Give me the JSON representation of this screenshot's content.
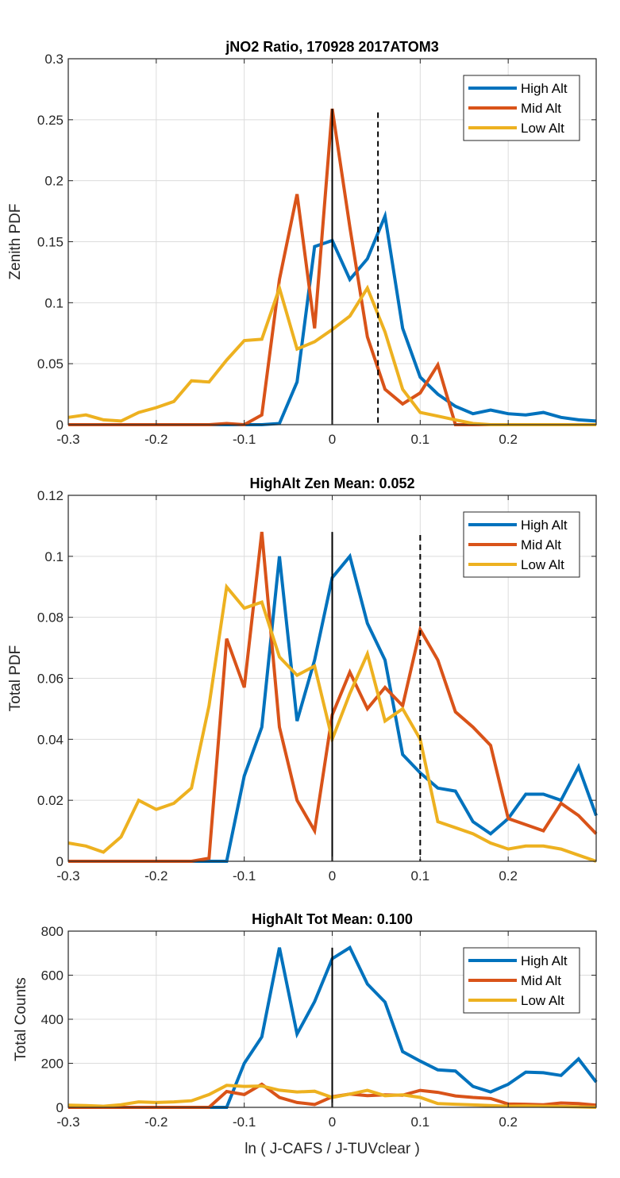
{
  "chart_data": [
    {
      "type": "line",
      "title": "jNO2 Ratio, 170928 2017ATOM3",
      "xlabel": "",
      "ylabel": "Zenith PDF",
      "xlim": [
        -0.3,
        0.3
      ],
      "ylim": [
        0,
        0.3
      ],
      "xticks": [
        -0.3,
        -0.2,
        -0.1,
        0,
        0.1,
        0.2
      ],
      "xtick_labels": [
        "-0.3",
        "-0.2",
        "-0.1",
        "0",
        "0.1",
        "0.2"
      ],
      "yticks": [
        0,
        0.05,
        0.1,
        0.15,
        0.2,
        0.25,
        0.3
      ],
      "ytick_labels": [
        "0",
        "0.05",
        "0.1",
        "0.15",
        "0.2",
        "0.25",
        "0.3"
      ],
      "grid": true,
      "legend": "top-right",
      "x": [
        -0.3,
        -0.28,
        -0.26,
        -0.24,
        -0.22,
        -0.2,
        -0.18,
        -0.16,
        -0.14,
        -0.12,
        -0.1,
        -0.08,
        -0.06,
        -0.04,
        -0.02,
        0,
        0.02,
        0.04,
        0.06,
        0.08,
        0.1,
        0.12,
        0.14,
        0.16,
        0.18,
        0.2,
        0.22,
        0.24,
        0.26,
        0.28,
        0.3
      ],
      "series": [
        {
          "name": "High Alt",
          "color": "#0072BD",
          "values": [
            0,
            0,
            0,
            0,
            0,
            0,
            0,
            0,
            0,
            0,
            0,
            0,
            0.001,
            0.035,
            0.146,
            0.151,
            0.119,
            0.136,
            0.171,
            0.079,
            0.039,
            0.025,
            0.015,
            0.009,
            0.012,
            0.009,
            0.008,
            0.01,
            0.006,
            0.004,
            0.003
          ]
        },
        {
          "name": "Mid Alt",
          "color": "#D95319",
          "values": [
            0,
            0,
            0,
            0,
            0,
            0,
            0,
            0,
            0,
            0.001,
            0,
            0.008,
            0.119,
            0.189,
            0.079,
            0.259,
            0.162,
            0.072,
            0.029,
            0.017,
            0.026,
            0.049,
            0,
            0,
            0,
            0,
            0,
            0,
            0,
            0,
            0
          ]
        },
        {
          "name": "Low Alt",
          "color": "#EDB120",
          "values": [
            0.006,
            0.008,
            0.004,
            0.003,
            0.01,
            0.014,
            0.019,
            0.036,
            0.035,
            0.053,
            0.069,
            0.07,
            0.112,
            0.062,
            0.068,
            0.078,
            0.089,
            0.112,
            0.076,
            0.029,
            0.01,
            0.007,
            0.004,
            0.001,
            0,
            0,
            0,
            0,
            0,
            0,
            0
          ]
        }
      ],
      "vlines": [
        {
          "x": 0,
          "style": "solid",
          "ymax": 0.259
        },
        {
          "x": 0.052,
          "style": "dashed",
          "ymax": 0.256
        }
      ]
    },
    {
      "type": "line",
      "title": "HighAlt Zen Mean: 0.052",
      "xlabel": "",
      "ylabel": "Total PDF",
      "xlim": [
        -0.3,
        0.3
      ],
      "ylim": [
        0,
        0.12
      ],
      "xticks": [
        -0.3,
        -0.2,
        -0.1,
        0,
        0.1,
        0.2
      ],
      "xtick_labels": [
        "-0.3",
        "-0.2",
        "-0.1",
        "0",
        "0.1",
        "0.2"
      ],
      "yticks": [
        0,
        0.02,
        0.04,
        0.06,
        0.08,
        0.1,
        0.12
      ],
      "ytick_labels": [
        "0",
        "0.02",
        "0.04",
        "0.06",
        "0.08",
        "0.1",
        "0.12"
      ],
      "grid": true,
      "legend": "top-right",
      "x": [
        -0.3,
        -0.28,
        -0.26,
        -0.24,
        -0.22,
        -0.2,
        -0.18,
        -0.16,
        -0.14,
        -0.12,
        -0.1,
        -0.08,
        -0.06,
        -0.04,
        -0.02,
        0,
        0.02,
        0.04,
        0.06,
        0.08,
        0.1,
        0.12,
        0.14,
        0.16,
        0.18,
        0.2,
        0.22,
        0.24,
        0.26,
        0.28,
        0.3
      ],
      "series": [
        {
          "name": "High Alt",
          "color": "#0072BD",
          "values": [
            0,
            0,
            0,
            0,
            0,
            0,
            0,
            0,
            0,
            0,
            0.028,
            0.044,
            0.1,
            0.046,
            0.066,
            0.093,
            0.1,
            0.078,
            0.066,
            0.035,
            0.029,
            0.024,
            0.023,
            0.013,
            0.009,
            0.014,
            0.022,
            0.022,
            0.02,
            0.031,
            0.015
          ]
        },
        {
          "name": "Mid Alt",
          "color": "#D95319",
          "values": [
            0,
            0,
            0,
            0,
            0,
            0,
            0,
            0,
            0.001,
            0.073,
            0.057,
            0.108,
            0.044,
            0.02,
            0.01,
            0.048,
            0.062,
            0.05,
            0.057,
            0.051,
            0.076,
            0.066,
            0.049,
            0.044,
            0.038,
            0.014,
            0.012,
            0.01,
            0.019,
            0.015,
            0.009
          ]
        },
        {
          "name": "Low Alt",
          "color": "#EDB120",
          "values": [
            0.006,
            0.005,
            0.003,
            0.008,
            0.02,
            0.017,
            0.019,
            0.024,
            0.051,
            0.09,
            0.083,
            0.085,
            0.067,
            0.061,
            0.064,
            0.04,
            0.055,
            0.068,
            0.046,
            0.05,
            0.04,
            0.013,
            0.011,
            0.009,
            0.006,
            0.004,
            0.005,
            0.005,
            0.004,
            0.002,
            0.0
          ]
        }
      ],
      "vlines": [
        {
          "x": 0,
          "style": "solid",
          "ymax": 0.108
        },
        {
          "x": 0.1,
          "style": "dashed",
          "ymax": 0.107
        }
      ]
    },
    {
      "type": "line",
      "title": "HighAlt Tot Mean: 0.100",
      "xlabel": "ln ( J-CAFS / J-TUVclear )",
      "ylabel": "Total Counts",
      "xlim": [
        -0.3,
        0.3
      ],
      "ylim": [
        0,
        800
      ],
      "xticks": [
        -0.3,
        -0.2,
        -0.1,
        0,
        0.1,
        0.2
      ],
      "xtick_labels": [
        "-0.3",
        "-0.2",
        "-0.1",
        "0",
        "0.1",
        "0.2"
      ],
      "yticks": [
        0,
        200,
        400,
        600,
        800
      ],
      "ytick_labels": [
        "0",
        "200",
        "400",
        "600",
        "800"
      ],
      "grid": true,
      "legend": "top-right",
      "x": [
        -0.3,
        -0.28,
        -0.26,
        -0.24,
        -0.22,
        -0.2,
        -0.18,
        -0.16,
        -0.14,
        -0.12,
        -0.1,
        -0.08,
        -0.06,
        -0.04,
        -0.02,
        0,
        0.02,
        0.04,
        0.06,
        0.08,
        0.1,
        0.12,
        0.14,
        0.16,
        0.18,
        0.2,
        0.22,
        0.24,
        0.26,
        0.28,
        0.3
      ],
      "series": [
        {
          "name": "High Alt",
          "color": "#0072BD",
          "values": [
            0,
            0,
            0,
            0,
            0,
            0,
            0,
            0,
            0,
            0,
            200,
            320,
            725,
            333,
            480,
            675,
            725,
            560,
            478,
            253,
            210,
            170,
            165,
            95,
            70,
            105,
            160,
            157,
            145,
            220,
            115
          ]
        },
        {
          "name": "Mid Alt",
          "color": "#D95319",
          "values": [
            0,
            0,
            0,
            0,
            0,
            0,
            0,
            0,
            0,
            72,
            58,
            105,
            45,
            22,
            13,
            48,
            60,
            53,
            57,
            55,
            77,
            68,
            52,
            45,
            40,
            15,
            14,
            12,
            20,
            17,
            10
          ]
        },
        {
          "name": "Low Alt",
          "color": "#EDB120",
          "values": [
            10,
            8,
            5,
            12,
            25,
            22,
            25,
            30,
            58,
            100,
            95,
            97,
            78,
            70,
            73,
            45,
            60,
            77,
            53,
            57,
            45,
            17,
            14,
            11,
            8,
            5,
            6,
            5,
            4,
            2,
            0
          ]
        }
      ],
      "vlines": [
        {
          "x": 0,
          "style": "solid",
          "ymax": 725
        }
      ]
    }
  ]
}
